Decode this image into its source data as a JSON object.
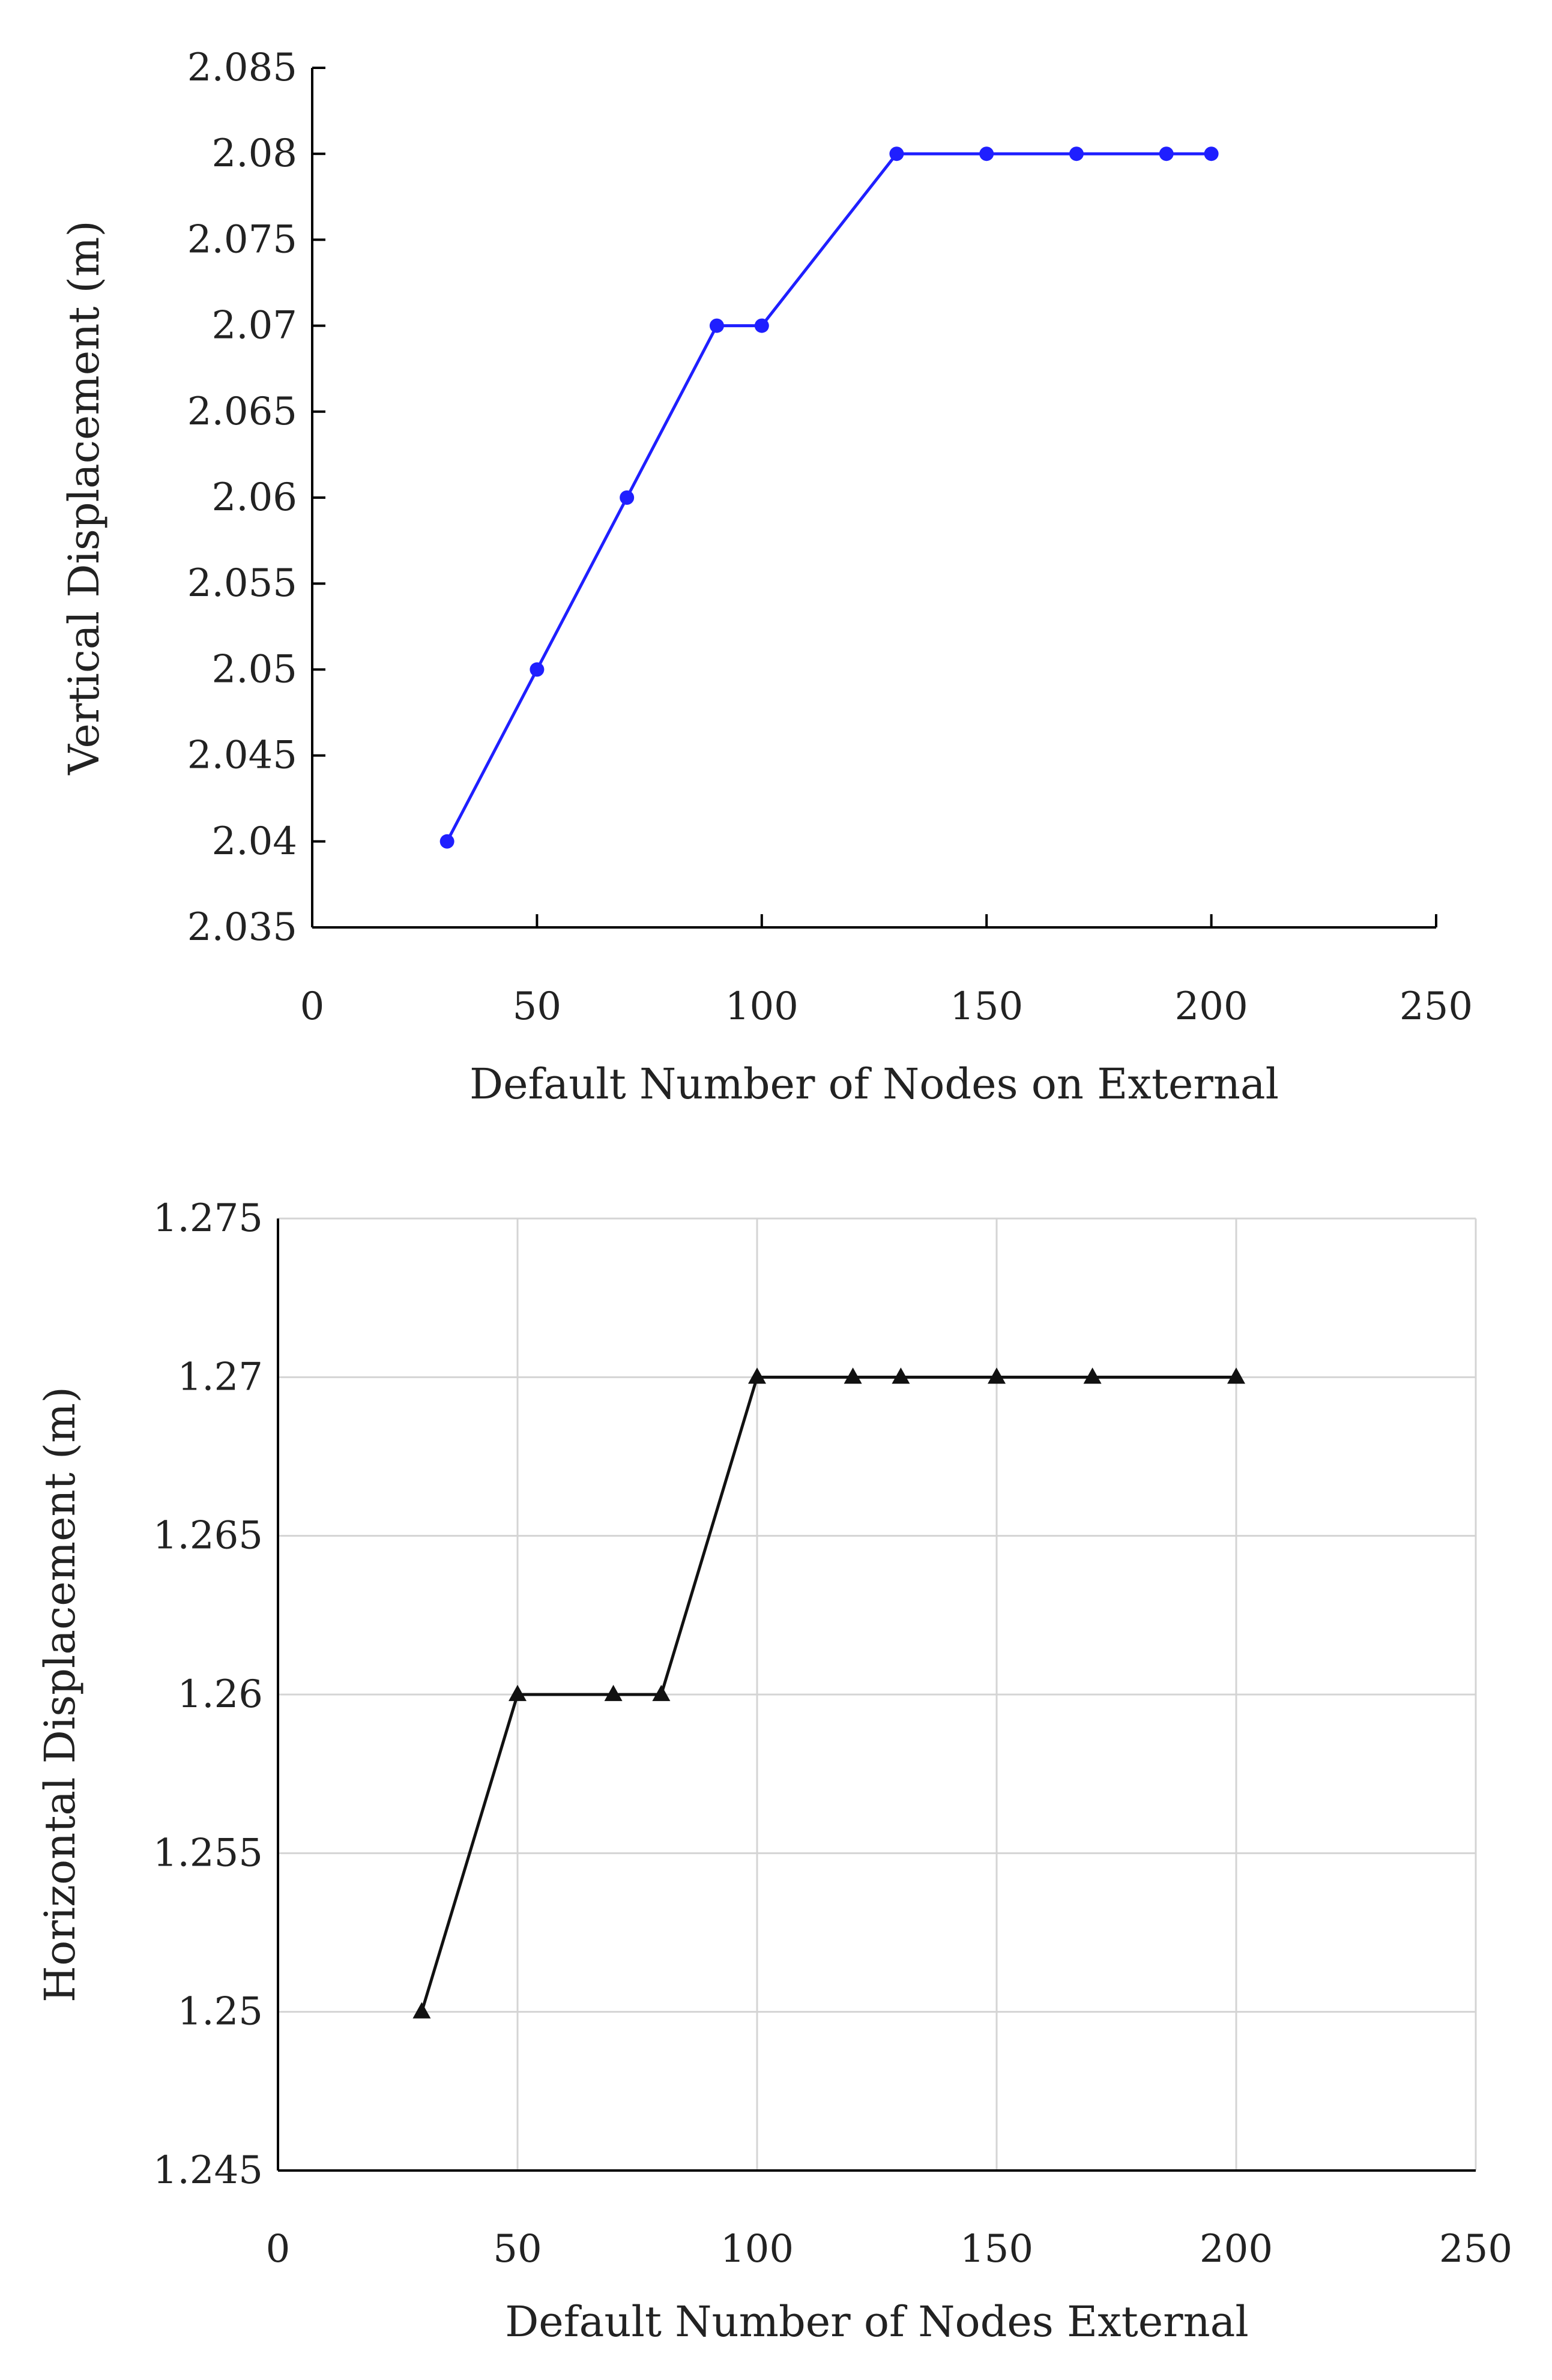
{
  "chart_data": [
    {
      "type": "line",
      "title": "",
      "xlabel": "Default Number of Nodes on External",
      "ylabel": "Vertical Displacement (m)",
      "xlim": [
        0,
        250
      ],
      "ylim": [
        2.035,
        2.085
      ],
      "xticks": [
        0,
        50,
        100,
        150,
        200,
        250
      ],
      "xtick_labels": [
        "0",
        "50",
        "100",
        "150",
        "200",
        "250"
      ],
      "yticks": [
        2.035,
        2.04,
        2.045,
        2.05,
        2.055,
        2.06,
        2.065,
        2.07,
        2.075,
        2.08,
        2.085
      ],
      "ytick_labels": [
        "2.035",
        "2.04",
        "2.045",
        "2.05",
        "2.055",
        "2.06",
        "2.065",
        "2.07",
        "2.075",
        "2.08",
        "2.085"
      ],
      "grid": false,
      "series": [
        {
          "x": [
            30,
            50,
            70,
            90,
            100,
            130,
            150,
            170,
            190,
            200
          ],
          "values": [
            2.04,
            2.05,
            2.06,
            2.07,
            2.07,
            2.08,
            2.08,
            2.08,
            2.08,
            2.08
          ],
          "color": "#1f1fff",
          "marker": "circle"
        }
      ]
    },
    {
      "type": "line",
      "title": "",
      "xlabel": "Default Number of Nodes External",
      "ylabel": "Horizontal Displacement (m)",
      "xlim": [
        0,
        250
      ],
      "ylim": [
        1.245,
        1.275
      ],
      "xticks": [
        0,
        50,
        100,
        150,
        200,
        250
      ],
      "xtick_labels": [
        "0",
        "50",
        "100",
        "150",
        "200",
        "250"
      ],
      "yticks": [
        1.245,
        1.25,
        1.255,
        1.26,
        1.265,
        1.27,
        1.275
      ],
      "ytick_labels": [
        "1.245",
        "1.25",
        "1.255",
        "1.26",
        "1.265",
        "1.27",
        "1.275"
      ],
      "grid": true,
      "series": [
        {
          "x": [
            30,
            50,
            70,
            80,
            100,
            120,
            130,
            150,
            170,
            200
          ],
          "values": [
            1.25,
            1.26,
            1.26,
            1.26,
            1.27,
            1.27,
            1.27,
            1.27,
            1.27,
            1.27
          ],
          "color": "#111111",
          "marker": "triangle"
        }
      ]
    }
  ]
}
